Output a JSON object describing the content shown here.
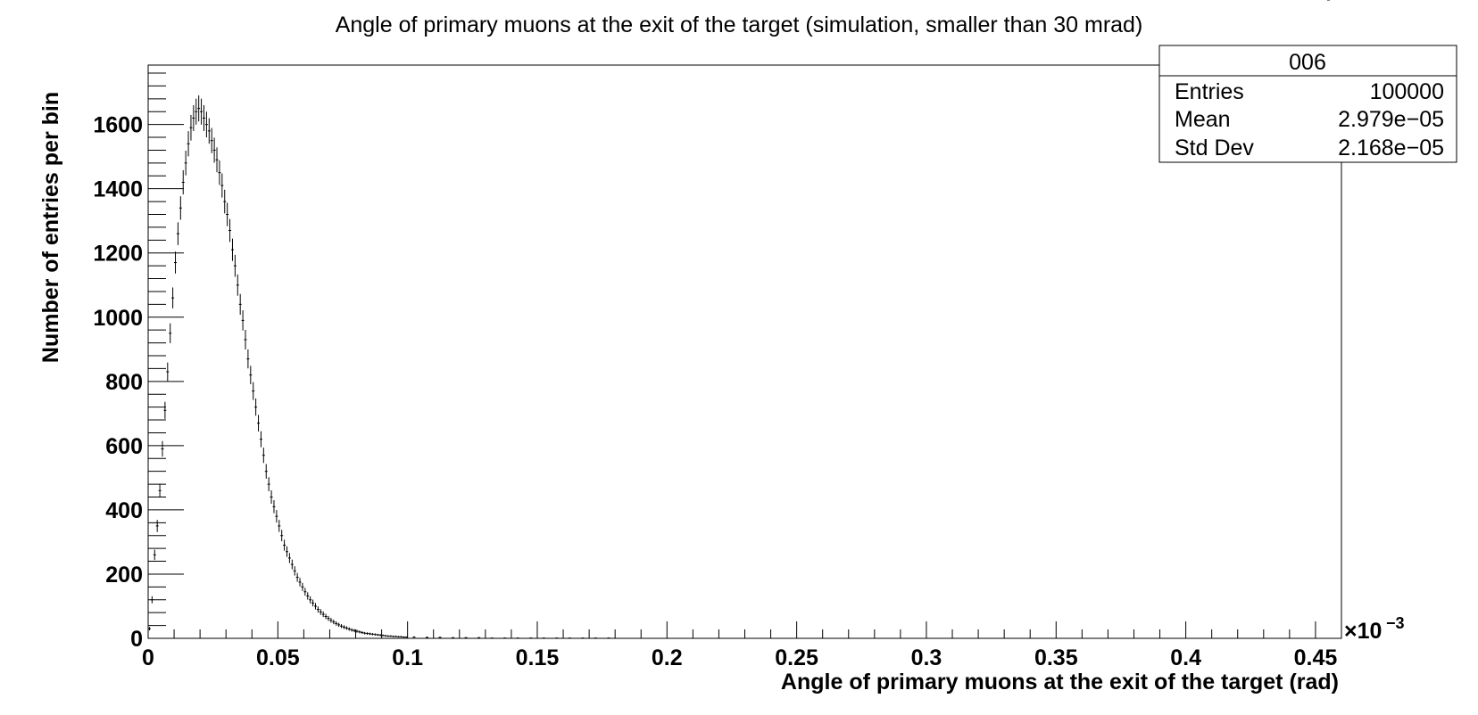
{
  "chart_data": {
    "type": "histogram",
    "title": "Angle of primary muons at the exit of the target (simulation, smaller than 30 mrad)",
    "xlabel": "Angle of primary muons at the exit of the target (rad)",
    "ylabel": "Number of entries per bin",
    "x_exponent_label": "×10",
    "x_exponent_power": "−3",
    "xlim": [
      0,
      0.46
    ],
    "ylim": [
      0,
      1785
    ],
    "x_ticks": [
      0,
      0.05,
      0.1,
      0.15,
      0.2,
      0.25,
      0.3,
      0.35,
      0.4,
      0.45
    ],
    "x_tick_labels": [
      "0",
      "0.05",
      "0.1",
      "0.15",
      "0.2",
      "0.25",
      "0.3",
      "0.35",
      "0.4",
      "0.45"
    ],
    "y_ticks": [
      0,
      200,
      400,
      600,
      800,
      1000,
      1200,
      1400,
      1600
    ],
    "y_tick_labels": [
      "0",
      "200",
      "400",
      "600",
      "800",
      "1000",
      "1200",
      "1400",
      "1600"
    ],
    "grid": false,
    "marker": "error-bars",
    "bin_width": 0.001,
    "bins_x": [
      0.0005,
      0.0015,
      0.0025,
      0.0035,
      0.0045,
      0.0055,
      0.0065,
      0.0075,
      0.0085,
      0.0095,
      0.0105,
      0.0115,
      0.0125,
      0.0135,
      0.0145,
      0.0155,
      0.0165,
      0.0175,
      0.0185,
      0.0195,
      0.0205,
      0.0215,
      0.0225,
      0.0235,
      0.0245,
      0.0255,
      0.0265,
      0.0275,
      0.0285,
      0.0295,
      0.0305,
      0.0315,
      0.0325,
      0.0335,
      0.0345,
      0.0355,
      0.0365,
      0.0375,
      0.0385,
      0.0395,
      0.0405,
      0.0415,
      0.0425,
      0.0435,
      0.0445,
      0.0455,
      0.0465,
      0.0475,
      0.0485,
      0.0495,
      0.0505,
      0.0515,
      0.0525,
      0.0535,
      0.0545,
      0.0555,
      0.0565,
      0.0575,
      0.0585,
      0.0595,
      0.0605,
      0.0615,
      0.0625,
      0.0635,
      0.0645,
      0.0655,
      0.0665,
      0.0675,
      0.0685,
      0.0695,
      0.0705,
      0.0715,
      0.0725,
      0.0735,
      0.0745,
      0.0755,
      0.0765,
      0.0775,
      0.0785,
      0.0795,
      0.0805,
      0.0815,
      0.0825,
      0.0835,
      0.0845,
      0.0855,
      0.0865,
      0.0875,
      0.0885,
      0.0895,
      0.0905,
      0.0915,
      0.0925,
      0.0935,
      0.0945,
      0.0955,
      0.0965,
      0.0975,
      0.0985,
      0.0995,
      0.1025,
      0.1075,
      0.1125,
      0.1175,
      0.1225,
      0.1275,
      0.1325,
      0.1375,
      0.1425,
      0.1475,
      0.1525,
      0.1575,
      0.1625,
      0.1675,
      0.1725,
      0.1775,
      0.1825,
      0.1875,
      0.1925,
      0.1975,
      0.205,
      0.215,
      0.225,
      0.235,
      0.245,
      0.255,
      0.265,
      0.275,
      0.285,
      0.295,
      0.305,
      0.315,
      0.325,
      0.335,
      0.345,
      0.355,
      0.365,
      0.375,
      0.385,
      0.395,
      0.405,
      0.415,
      0.425,
      0.435,
      0.445,
      0.455
    ],
    "bins_y": [
      30,
      120,
      260,
      350,
      460,
      590,
      710,
      830,
      950,
      1060,
      1170,
      1260,
      1340,
      1420,
      1480,
      1540,
      1590,
      1620,
      1640,
      1650,
      1640,
      1620,
      1600,
      1580,
      1550,
      1520,
      1490,
      1450,
      1410,
      1360,
      1320,
      1270,
      1210,
      1160,
      1100,
      1040,
      990,
      930,
      870,
      820,
      770,
      720,
      670,
      620,
      570,
      520,
      480,
      440,
      410,
      380,
      350,
      320,
      290,
      270,
      250,
      230,
      210,
      190,
      175,
      160,
      145,
      132,
      120,
      110,
      100,
      90,
      82,
      75,
      68,
      62,
      56,
      51,
      46,
      42,
      38,
      35,
      32,
      29,
      26,
      24,
      22,
      20,
      18,
      16,
      15,
      14,
      13,
      12,
      11,
      10,
      9,
      8,
      7,
      7,
      6,
      6,
      5,
      5,
      4,
      4,
      4,
      3,
      3,
      2,
      2,
      2,
      1,
      1,
      1,
      1,
      1,
      1,
      1,
      1,
      1,
      1,
      0,
      0,
      0,
      0,
      0,
      0,
      0,
      0,
      0,
      0,
      0,
      0,
      0,
      0,
      0,
      0,
      0,
      0,
      0,
      0,
      0,
      0,
      0,
      0,
      0,
      0,
      0,
      0,
      0
    ]
  },
  "stats_box": {
    "title": "006",
    "rows": [
      {
        "label": "Entries",
        "value": "100000"
      },
      {
        "label": "Mean",
        "value": "2.979e−05"
      },
      {
        "label": "Std Dev",
        "value": "2.168e−05"
      }
    ]
  }
}
